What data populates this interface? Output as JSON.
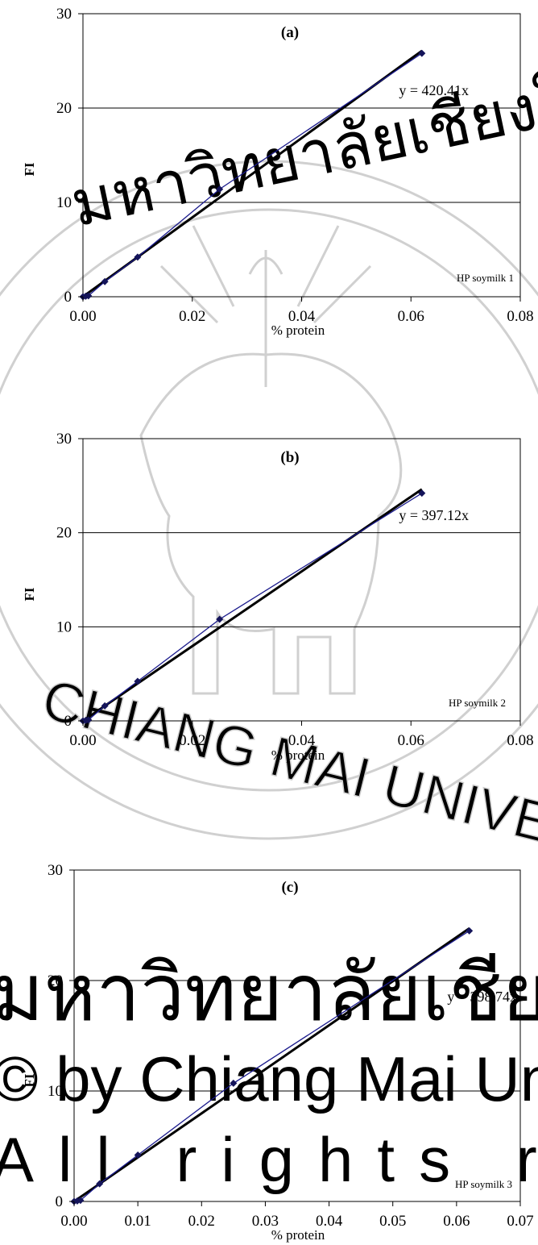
{
  "chart_data": [
    {
      "type": "scatter",
      "panel_label": "(a)",
      "xlabel": "% protein",
      "ylabel": "FI",
      "xlim": [
        0,
        0.08
      ],
      "ylim": [
        0,
        30
      ],
      "xticks": [
        "0.00",
        "0.02",
        "0.04",
        "0.06",
        "0.08"
      ],
      "yticks": [
        "0",
        "10",
        "20",
        "30"
      ],
      "grid": "horizontal",
      "series": [
        {
          "name": "HP soymilk 1",
          "x": [
            0.0,
            0.0005,
            0.001,
            0.004,
            0.01,
            0.025,
            0.062
          ],
          "y": [
            0.0,
            0.05,
            0.1,
            1.6,
            4.2,
            11.4,
            25.8
          ]
        }
      ],
      "fit": {
        "equation": "y = 420.41x",
        "slope": 420.41
      }
    },
    {
      "type": "scatter",
      "panel_label": "(b)",
      "xlabel": "% protein",
      "ylabel": "FI",
      "xlim": [
        0,
        0.08
      ],
      "ylim": [
        0,
        30
      ],
      "xticks": [
        "0.00",
        "0.02",
        "0.04",
        "0.06",
        "0.08"
      ],
      "yticks": [
        "0",
        "10",
        "20",
        "30"
      ],
      "grid": "horizontal",
      "series": [
        {
          "name": "HP soymilk 2",
          "x": [
            0.0,
            0.0005,
            0.001,
            0.004,
            0.01,
            0.025,
            0.062
          ],
          "y": [
            0.0,
            0.05,
            0.1,
            1.6,
            4.2,
            10.8,
            24.2
          ]
        }
      ],
      "fit": {
        "equation": "y = 397.12x",
        "slope": 397.12
      }
    },
    {
      "type": "scatter",
      "panel_label": "(c)",
      "xlabel": "% protein",
      "ylabel": "FI",
      "xlim": [
        0,
        0.07
      ],
      "ylim": [
        0,
        30
      ],
      "xticks": [
        "0.00",
        "0.01",
        "0.02",
        "0.03",
        "0.04",
        "0.05",
        "0.06",
        "0.07"
      ],
      "yticks": [
        "0",
        "10",
        "20",
        "30"
      ],
      "grid": "horizontal",
      "series": [
        {
          "name": "HP soymilk 3",
          "x": [
            0.0,
            0.0005,
            0.001,
            0.004,
            0.01,
            0.025,
            0.062
          ],
          "y": [
            0.0,
            0.05,
            0.1,
            1.6,
            4.2,
            10.7,
            24.5
          ]
        }
      ],
      "fit": {
        "equation": "y = 398.74x",
        "slope": 398.74
      }
    }
  ],
  "watermark": {
    "arc_text": "CHIANG MAI UNIVERSITY",
    "thai_arc_top": "มหาวิทยาลัยเชียงใหม่",
    "thai_line": "มหาวิทยาลัยเชียงใหม่",
    "copyright_line": "© by Chiang Mai University",
    "rights_line": "All rights reserved",
    "color": "#c8c8c8"
  },
  "colors": {
    "series_line": "#1a1a8c",
    "marker": "#14145a",
    "fit_line": "#000000",
    "grid": "#000000"
  }
}
